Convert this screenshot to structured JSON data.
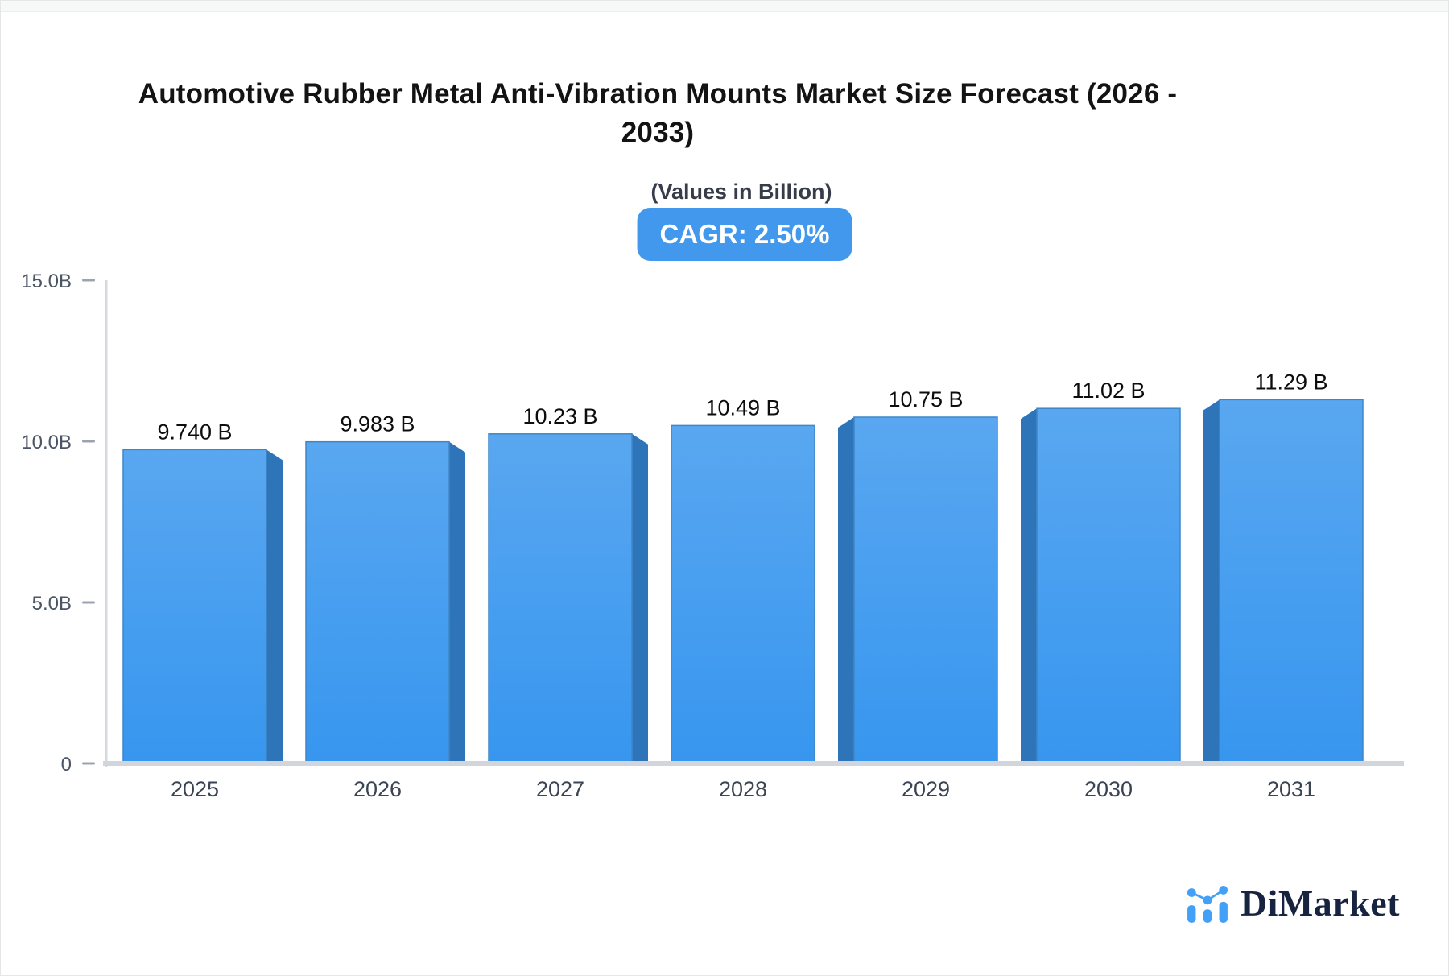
{
  "page": {
    "background": "#f7f9f9",
    "card_background": "#ffffff"
  },
  "header": {
    "title": "Automotive Rubber Metal Anti-Vibration Mounts Market Size Forecast (2026 - 2033)",
    "title_lines": [
      "Automotive Rubber Metal Anti-Vibration Mounts Market Size Forecast (2026 -",
      "2033)"
    ],
    "subtitle": "(Values in Billion)",
    "cagr_badge": "CAGR: 2.50%",
    "badge_color": "#4198ec"
  },
  "chart_data": {
    "type": "bar",
    "title": "Automotive Rubber Metal Anti-Vibration Mounts Market Size Forecast (2026 - 2033)",
    "subtitle": "(Values in Billion)",
    "categories": [
      "2025",
      "2026",
      "2027",
      "2028",
      "2029",
      "2030",
      "2031"
    ],
    "values": [
      9.74,
      9.983,
      10.23,
      10.49,
      10.75,
      11.02,
      11.29
    ],
    "value_labels": [
      "9.740 B",
      "9.983 B",
      "10.23 B",
      "10.49 B",
      "10.75 B",
      "11.02 B",
      "11.29 B"
    ],
    "ylim": [
      0,
      15
    ],
    "yticks": [
      15,
      10,
      5,
      0
    ],
    "ytick_labels": [
      "15.0B",
      "10.0B",
      "5.0B",
      "0"
    ],
    "xlabel": "",
    "ylabel": "",
    "grid": false,
    "legend": false,
    "colors": {
      "bar_top": "#59a7f0",
      "bar_bottom": "#3796ef",
      "bar_side": "#2e74b8",
      "bar_border": "#3f86c8",
      "axis_line": "#d5d8dd",
      "baseline": "#d2d5db",
      "tick_dash": "#9ca3af",
      "ytick_text": "#4b5563",
      "xtick_text": "#3b4452",
      "value_text": "#0d0d0d"
    }
  },
  "branding": {
    "logo_text": "DiMarket",
    "logo_icon": "mini-bar-line-chart-icon",
    "logo_icon_color": "#42a0f6",
    "logo_text_color": "#172440"
  }
}
